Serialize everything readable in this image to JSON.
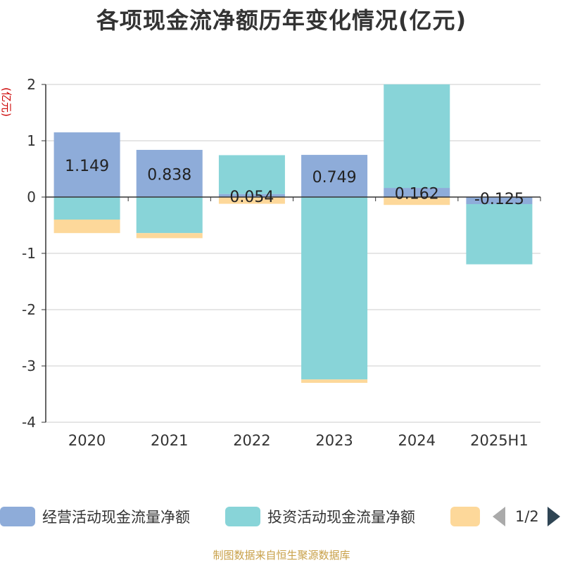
{
  "title": "各项现金流净额历年变化情况(亿元)",
  "source_note": "制图数据来自恒生聚源数据库",
  "legend": {
    "page_indicator": "1/2"
  },
  "colors": {
    "operating": "#8eacd9",
    "investing": "#88d4d8",
    "financing": "#fdd89a"
  },
  "chart_data": {
    "type": "bar",
    "stacked": true,
    "title": "各项现金流净额历年变化情况(亿元)",
    "ylabel": "(亿元)",
    "xlabel": "",
    "ylim": [
      -4,
      2
    ],
    "yticks": [
      -4,
      -3,
      -2,
      -1,
      0,
      1,
      2
    ],
    "ytick_labels": [
      "-4",
      "-3",
      "-2",
      "-1",
      "0",
      "1",
      "2"
    ],
    "grid": true,
    "legend_position": "bottom",
    "categories": [
      "2020",
      "2021",
      "2022",
      "2023",
      "2024",
      "2025H1"
    ],
    "series": [
      {
        "name": "经营活动现金流量净额",
        "values": [
          1.149,
          0.838,
          0.054,
          0.749,
          0.162,
          -0.125
        ],
        "labels": [
          "1.149",
          "0.838",
          "0.054",
          "0.749",
          "0.162",
          "-0.125"
        ]
      },
      {
        "name": "投资活动现金流量净额",
        "values": [
          -0.4,
          -0.64,
          0.69,
          -3.24,
          1.84,
          -1.07
        ]
      },
      {
        "name": "",
        "values": [
          -0.24,
          -0.09,
          -0.12,
          -0.06,
          -0.14,
          0
        ]
      }
    ]
  }
}
